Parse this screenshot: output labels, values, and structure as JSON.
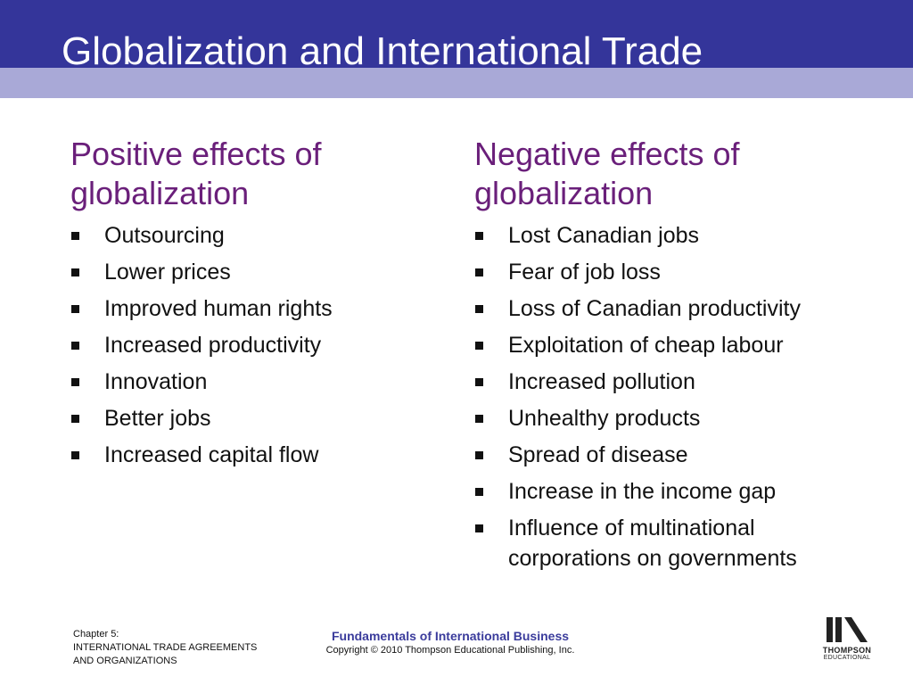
{
  "slide": {
    "title": "Globalization and International Trade"
  },
  "positive": {
    "heading_line1": "Positive effects of",
    "heading_line2": "globalization",
    "items": [
      "Outsourcing",
      "Lower prices",
      "Improved human rights",
      "Increased productivity",
      "Innovation",
      "Better jobs",
      "Increased capital flow"
    ]
  },
  "negative": {
    "heading_line1": "Negative effects of",
    "heading_line2": "globalization",
    "items": [
      "Lost Canadian jobs",
      "Fear of job loss",
      "Loss of Canadian productivity",
      "Exploitation of cheap labour",
      "Increased pollution",
      "Unhealthy products",
      "Spread of disease",
      "Increase in the income gap",
      "Influence of multinational corporations on governments"
    ]
  },
  "footer": {
    "chapter_line1": "Chapter 5:",
    "chapter_line2": "INTERNATIONAL TRADE AGREEMENTS",
    "chapter_line3": "AND ORGANIZATIONS",
    "book_title": "Fundamentals of International Business",
    "copyright": "Copyright © 2010 Thompson Educational Publishing, Inc.",
    "logo_name": "THOMPSON",
    "logo_sub": "EDUCATIONAL"
  },
  "colors": {
    "title_band": "#34359a",
    "sub_band": "#a9a9d7",
    "heading": "#6a1f7a",
    "footer_book": "#3b3c9c"
  }
}
